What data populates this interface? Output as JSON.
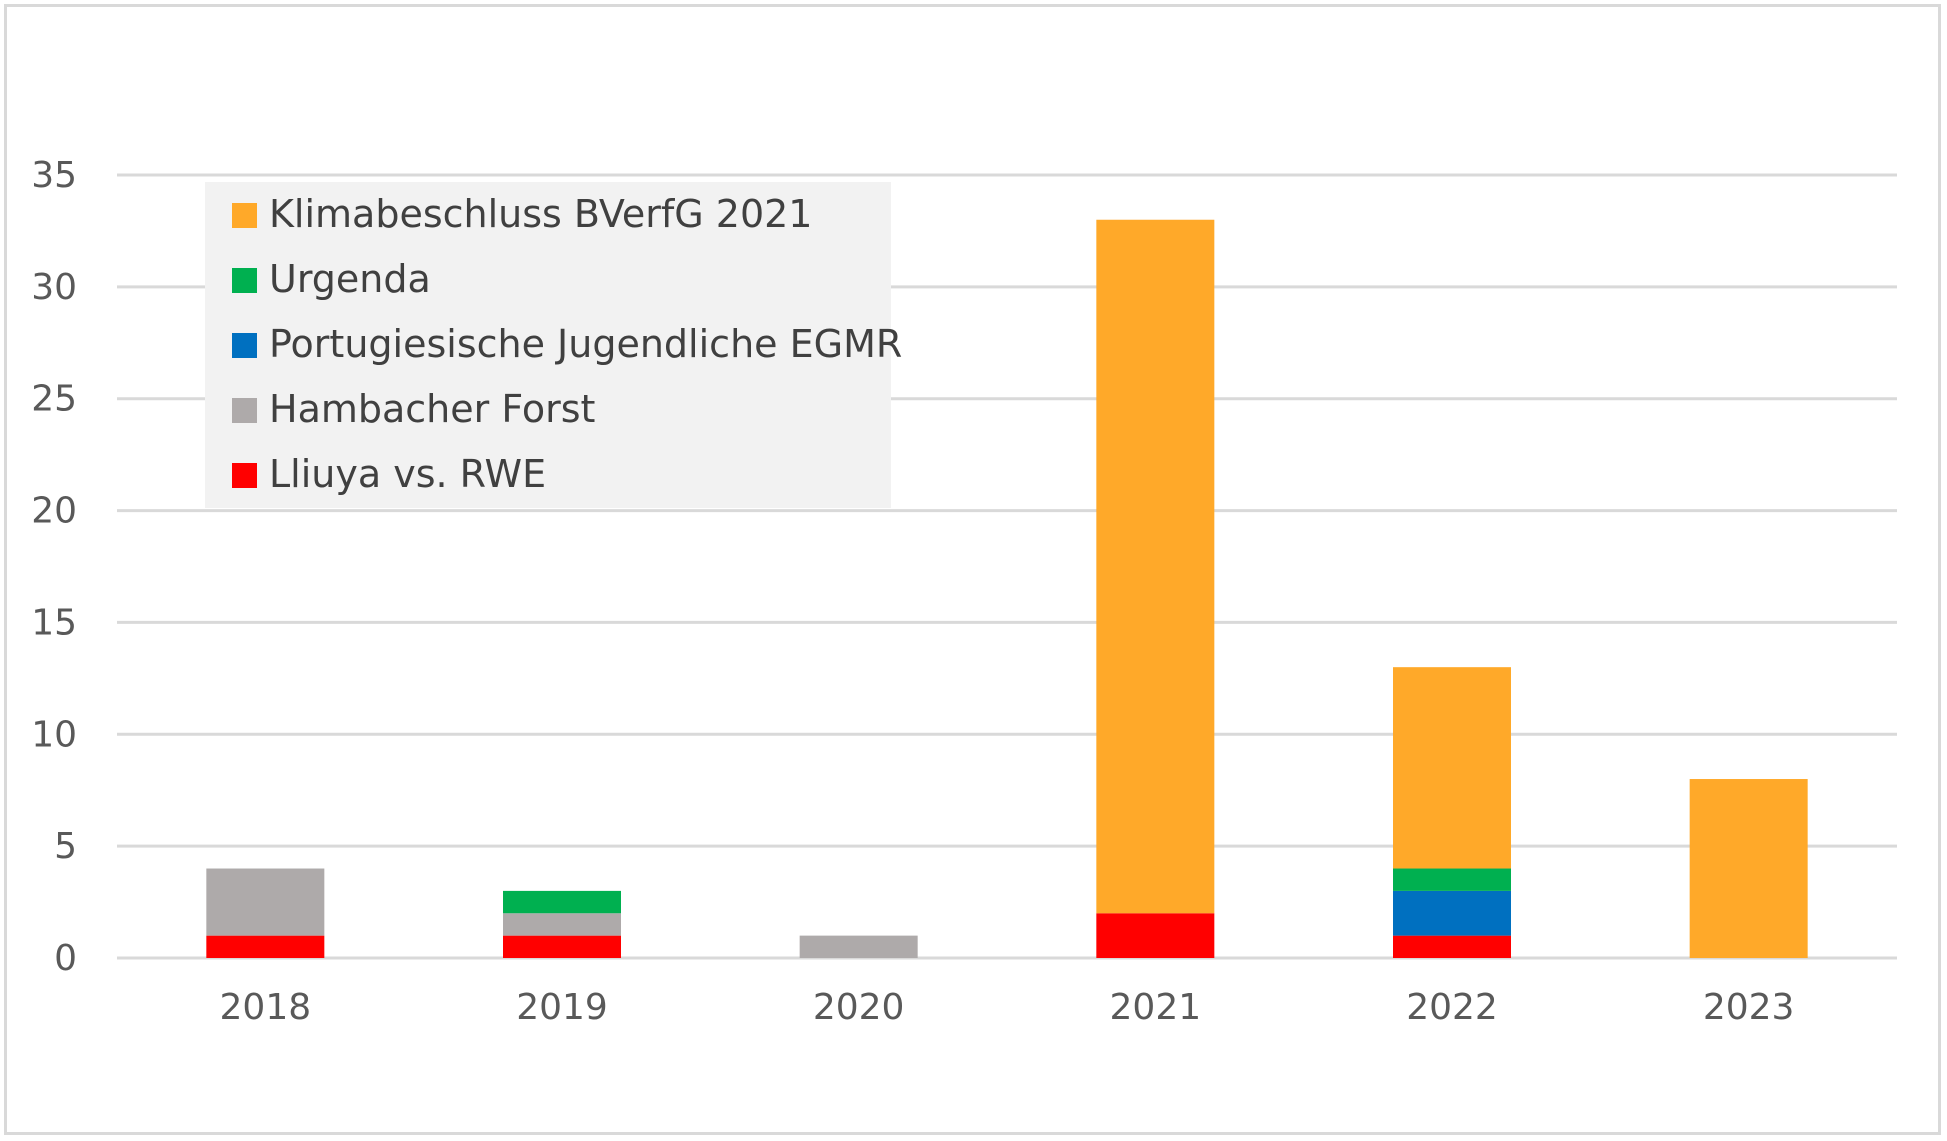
{
  "chart_data": {
    "type": "bar",
    "stacked": true,
    "categories": [
      "2018",
      "2019",
      "2020",
      "2021",
      "2022",
      "2023"
    ],
    "series": [
      {
        "name": "Lliuya vs. RWE",
        "color": "#ff0000",
        "values": [
          1,
          1,
          0,
          2,
          1,
          0
        ]
      },
      {
        "name": "Hambacher Forst",
        "color": "#aeaaaa",
        "values": [
          3,
          1,
          1,
          0,
          0,
          0
        ]
      },
      {
        "name": "Portugiesische Jugendliche EGMR",
        "color": "#0070c0",
        "values": [
          0,
          0,
          0,
          0,
          2,
          0
        ]
      },
      {
        "name": "Urgenda",
        "color": "#00b050",
        "values": [
          0,
          1,
          0,
          0,
          1,
          0
        ]
      },
      {
        "name": "Klimabeschluss BVerfG 2021",
        "color": "#ffa929",
        "values": [
          0,
          0,
          0,
          31,
          9,
          8
        ]
      }
    ],
    "legend_order": [
      "Klimabeschluss BVerfG 2021",
      "Urgenda",
      "Portugiesische Jugendliche EGMR",
      "Hambacher Forst",
      "Lliuya vs. RWE"
    ],
    "ylim": [
      0,
      35
    ],
    "yticks": [
      "0",
      "5",
      "10",
      "15",
      "20",
      "25",
      "30",
      "35"
    ],
    "grid": true,
    "legend_position": "top-left",
    "title": "",
    "xlabel": "",
    "ylabel": ""
  }
}
